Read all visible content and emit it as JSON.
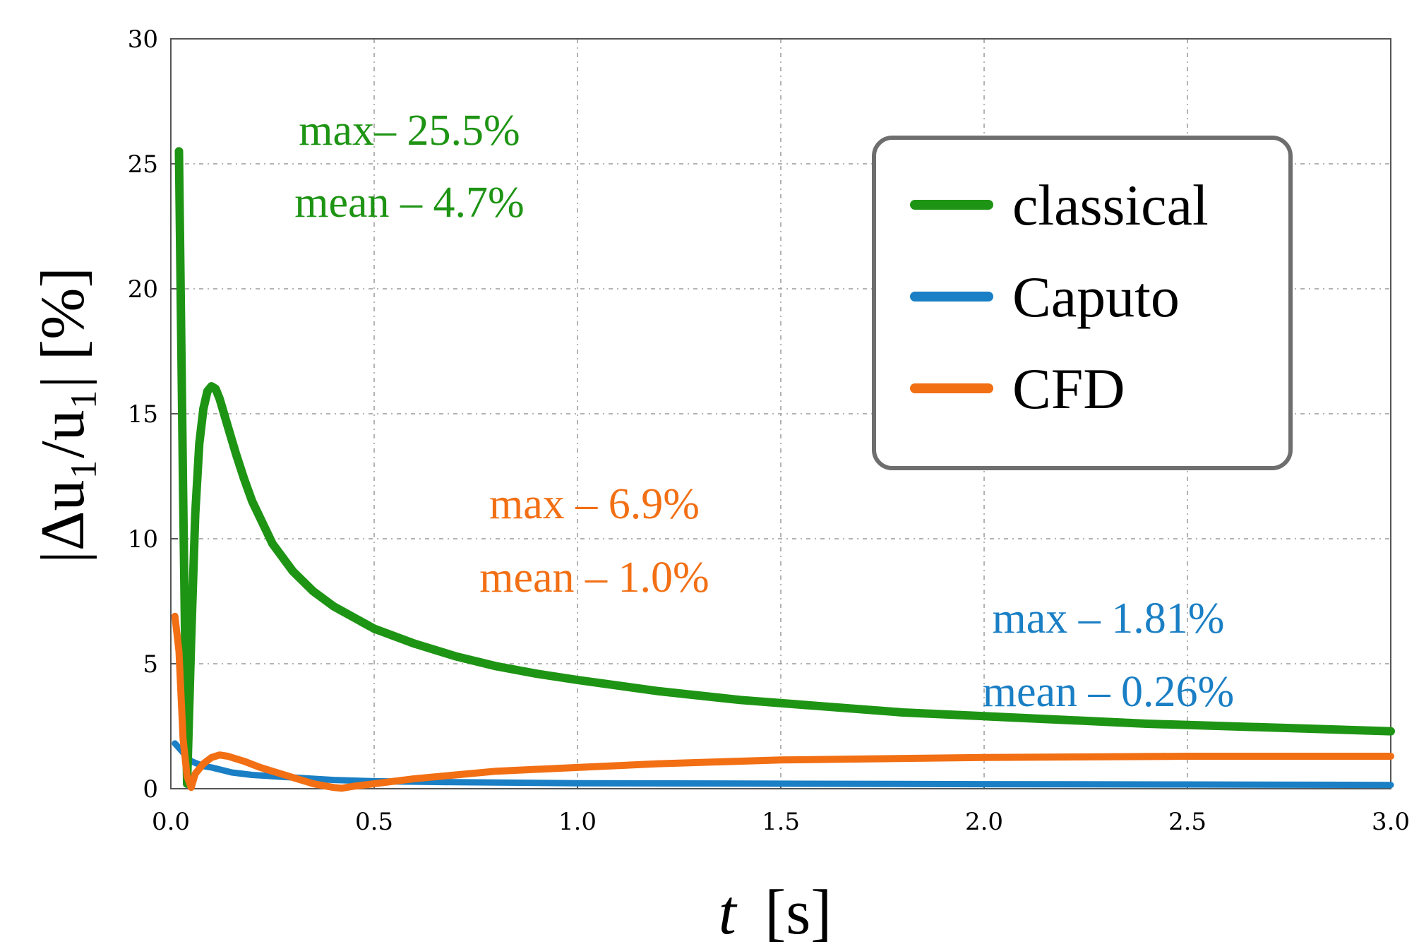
{
  "chart_data": {
    "type": "line",
    "xlabel_var": "t",
    "xlabel_unit": "[s]",
    "ylabel": "|Δu₁/u₁| [%]",
    "xlim": [
      0,
      3
    ],
    "ylim": [
      0,
      30
    ],
    "xticks": [
      0.0,
      0.5,
      1.0,
      1.5,
      2.0,
      2.5,
      3.0
    ],
    "xtick_labels": [
      "0.0",
      "0.5",
      "1.0",
      "1.5",
      "2.0",
      "2.5",
      "3.0"
    ],
    "yticks": [
      0,
      5,
      10,
      15,
      20,
      25,
      30
    ],
    "ytick_labels": [
      "0",
      "5",
      "10",
      "15",
      "20",
      "25",
      "30"
    ],
    "grid": true,
    "legend_position": "top-right",
    "series": [
      {
        "name": "classical",
        "color": "#1e9414",
        "x": [
          0.02,
          0.03,
          0.04,
          0.05,
          0.06,
          0.07,
          0.08,
          0.09,
          0.1,
          0.11,
          0.12,
          0.14,
          0.16,
          0.18,
          0.2,
          0.25,
          0.3,
          0.35,
          0.4,
          0.5,
          0.6,
          0.7,
          0.8,
          0.9,
          1.0,
          1.2,
          1.4,
          1.6,
          1.8,
          2.0,
          2.2,
          2.4,
          2.6,
          2.8,
          3.0
        ],
        "values": [
          25.5,
          12.0,
          0.2,
          6.0,
          11.0,
          13.8,
          15.2,
          15.9,
          16.1,
          16.0,
          15.6,
          14.5,
          13.4,
          12.4,
          11.5,
          9.8,
          8.7,
          7.9,
          7.3,
          6.4,
          5.8,
          5.3,
          4.9,
          4.6,
          4.35,
          3.9,
          3.55,
          3.3,
          3.05,
          2.9,
          2.75,
          2.6,
          2.5,
          2.4,
          2.3
        ]
      },
      {
        "name": "Caputo",
        "color": "#1a7fc4",
        "x": [
          0.01,
          0.03,
          0.05,
          0.08,
          0.1,
          0.15,
          0.2,
          0.3,
          0.4,
          0.5,
          0.7,
          1.0,
          1.5,
          2.0,
          2.5,
          3.0
        ],
        "values": [
          1.81,
          1.45,
          1.1,
          0.9,
          0.85,
          0.65,
          0.55,
          0.45,
          0.35,
          0.3,
          0.26,
          0.22,
          0.2,
          0.18,
          0.17,
          0.15
        ]
      },
      {
        "name": "CFD",
        "color": "#f26f14",
        "x": [
          0.01,
          0.02,
          0.03,
          0.04,
          0.05,
          0.06,
          0.08,
          0.1,
          0.12,
          0.14,
          0.18,
          0.22,
          0.3,
          0.35,
          0.4,
          0.42,
          0.45,
          0.5,
          0.6,
          0.7,
          0.8,
          1.0,
          1.2,
          1.5,
          2.0,
          2.5,
          3.0
        ],
        "values": [
          6.9,
          5.5,
          2.0,
          0.5,
          0.05,
          0.6,
          1.0,
          1.25,
          1.35,
          1.3,
          1.1,
          0.85,
          0.45,
          0.2,
          0.05,
          0.02,
          0.1,
          0.2,
          0.4,
          0.55,
          0.7,
          0.85,
          1.0,
          1.15,
          1.25,
          1.3,
          1.3
        ]
      }
    ],
    "annotations": [
      {
        "series": "classical",
        "lines": [
          "max– 25.5%",
          "mean – 4.7%"
        ]
      },
      {
        "series": "CFD",
        "lines": [
          "max – 6.9%",
          "mean – 1.0%"
        ]
      },
      {
        "series": "Caputo",
        "lines": [
          "max – 1.81%",
          "mean – 0.26%"
        ]
      }
    ]
  }
}
